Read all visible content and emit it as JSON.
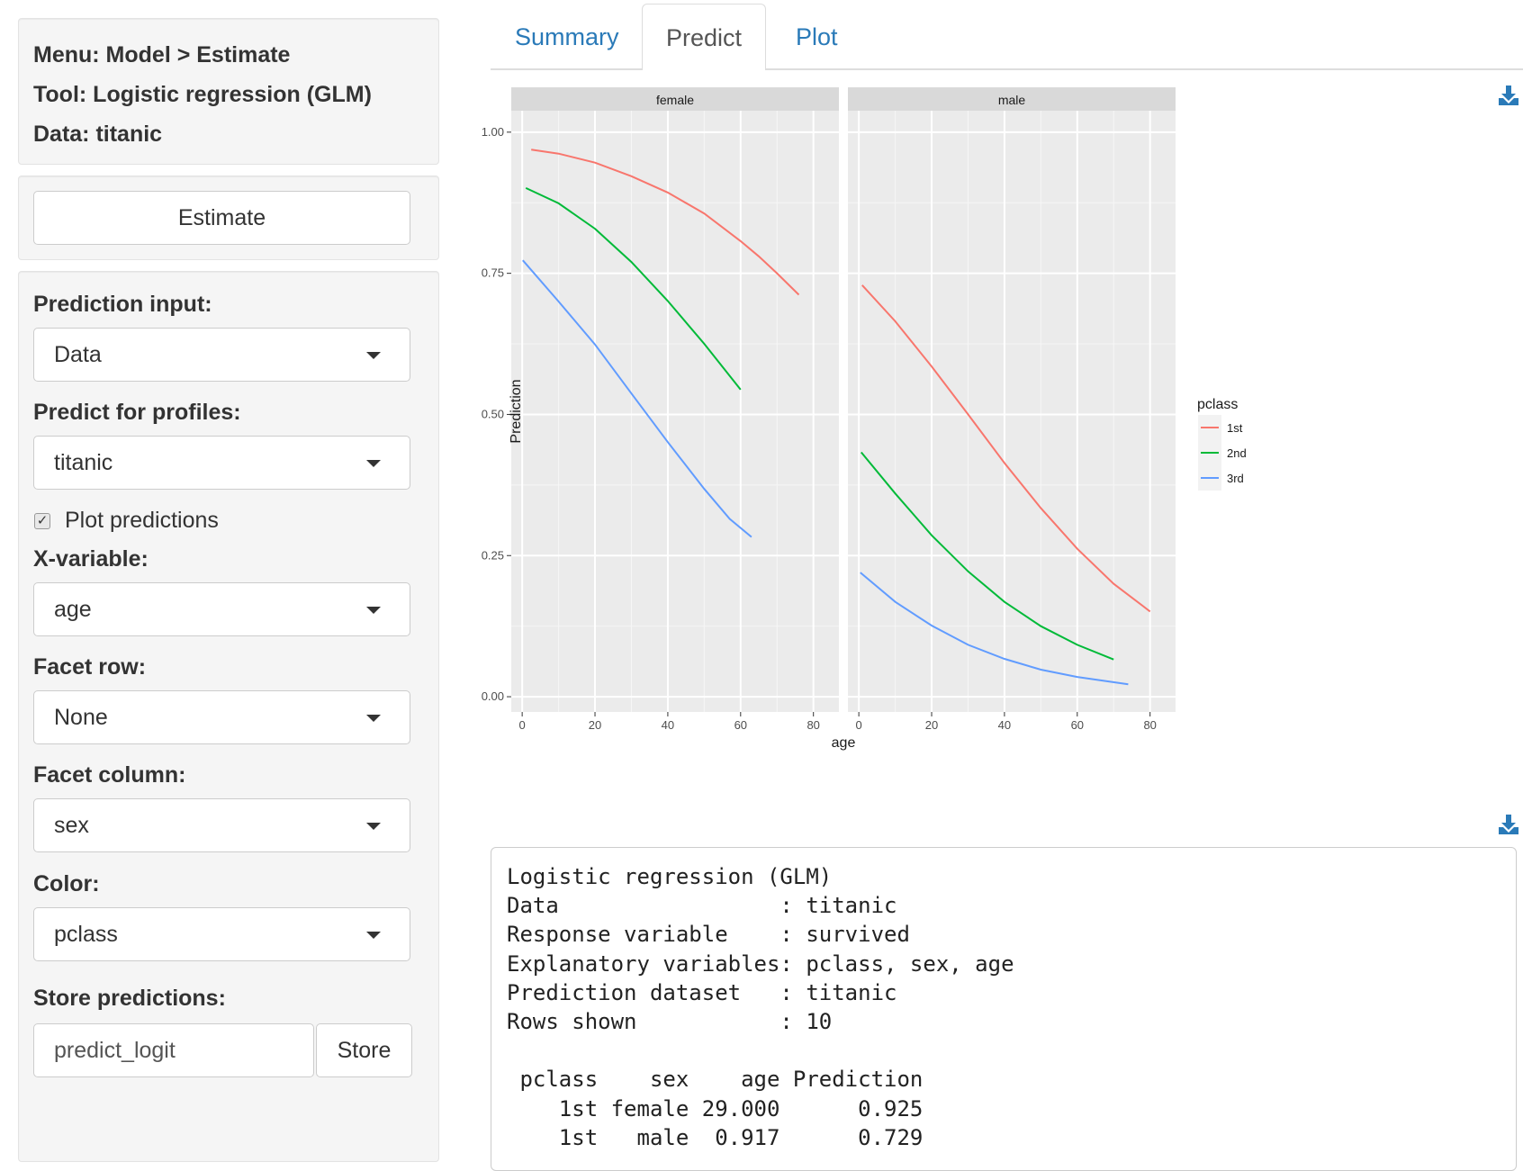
{
  "sidebar": {
    "info": {
      "menu": "Menu: Model > Estimate",
      "tool": "Tool: Logistic regression (GLM)",
      "data": "Data: titanic"
    },
    "estimate_button": "Estimate",
    "prediction_input": {
      "label": "Prediction input:",
      "value": "Data"
    },
    "predict_profiles": {
      "label": "Predict for profiles:",
      "value": "titanic"
    },
    "plot_predictions": {
      "label": "Plot predictions",
      "checked": true
    },
    "x_variable": {
      "label": "X-variable:",
      "value": "age"
    },
    "facet_row": {
      "label": "Facet row:",
      "value": "None"
    },
    "facet_column": {
      "label": "Facet column:",
      "value": "sex"
    },
    "color": {
      "label": "Color:",
      "value": "pclass"
    },
    "store": {
      "label": "Store predictions:",
      "input_value": "predict_logit",
      "button": "Store"
    }
  },
  "tabs": [
    {
      "label": "Summary",
      "active": false
    },
    {
      "label": "Predict",
      "active": true
    },
    {
      "label": "Plot",
      "active": false
    }
  ],
  "icons": {
    "download": "download-icon"
  },
  "chart_data": {
    "type": "line",
    "xlabel": "age",
    "ylabel": "Prediction",
    "ylim": [
      0,
      1
    ],
    "xlim": [
      -3,
      87
    ],
    "x_ticks": [
      "0",
      "20",
      "40",
      "60",
      "80"
    ],
    "y_ticks": [
      "0.00",
      "0.25",
      "0.50",
      "0.75",
      "1.00"
    ],
    "grid": true,
    "legend": {
      "title": "pclass",
      "position": "right"
    },
    "facets": [
      {
        "label": "female",
        "series": [
          {
            "name": "1st",
            "color": "#F8766D",
            "points": [
              [
                2.5,
                0.969
              ],
              [
                10,
                0.962
              ],
              [
                20,
                0.946
              ],
              [
                30,
                0.922
              ],
              [
                40,
                0.893
              ],
              [
                50,
                0.856
              ],
              [
                60,
                0.807
              ],
              [
                65,
                0.78
              ],
              [
                70,
                0.75
              ],
              [
                76,
                0.712
              ]
            ]
          },
          {
            "name": "2nd",
            "color": "#00BA38",
            "points": [
              [
                1,
                0.901
              ],
              [
                10,
                0.874
              ],
              [
                20,
                0.829
              ],
              [
                30,
                0.77
              ],
              [
                40,
                0.701
              ],
              [
                50,
                0.625
              ],
              [
                60,
                0.544
              ]
            ]
          },
          {
            "name": "3rd",
            "color": "#619CFF",
            "points": [
              [
                0.17,
                0.773
              ],
              [
                10,
                0.7
              ],
              [
                20,
                0.624
              ],
              [
                30,
                0.537
              ],
              [
                40,
                0.451
              ],
              [
                50,
                0.368
              ],
              [
                57,
                0.315
              ],
              [
                63,
                0.283
              ]
            ]
          }
        ]
      },
      {
        "label": "male",
        "series": [
          {
            "name": "1st",
            "color": "#F8766D",
            "points": [
              [
                0.917,
                0.729
              ],
              [
                10,
                0.665
              ],
              [
                20,
                0.585
              ],
              [
                30,
                0.5
              ],
              [
                40,
                0.414
              ],
              [
                50,
                0.334
              ],
              [
                60,
                0.262
              ],
              [
                70,
                0.2
              ],
              [
                80,
                0.151
              ]
            ]
          },
          {
            "name": "2nd",
            "color": "#00BA38",
            "points": [
              [
                0.67,
                0.433
              ],
              [
                10,
                0.36
              ],
              [
                20,
                0.286
              ],
              [
                30,
                0.222
              ],
              [
                40,
                0.168
              ],
              [
                50,
                0.125
              ],
              [
                60,
                0.092
              ],
              [
                70,
                0.066
              ]
            ]
          },
          {
            "name": "3rd",
            "color": "#619CFF",
            "points": [
              [
                0.42,
                0.22
              ],
              [
                10,
                0.168
              ],
              [
                20,
                0.126
              ],
              [
                30,
                0.092
              ],
              [
                40,
                0.067
              ],
              [
                50,
                0.048
              ],
              [
                60,
                0.035
              ],
              [
                74,
                0.022
              ]
            ]
          }
        ]
      }
    ]
  },
  "output": {
    "lines": [
      "Logistic regression (GLM)",
      "Data                 : titanic",
      "Response variable    : survived",
      "Explanatory variables: pclass, sex, age",
      "Prediction dataset   : titanic",
      "Rows shown           : 10",
      "",
      " pclass    sex    age Prediction",
      "    1st female 29.000      0.925",
      "    1st   male  0.917      0.729"
    ]
  }
}
